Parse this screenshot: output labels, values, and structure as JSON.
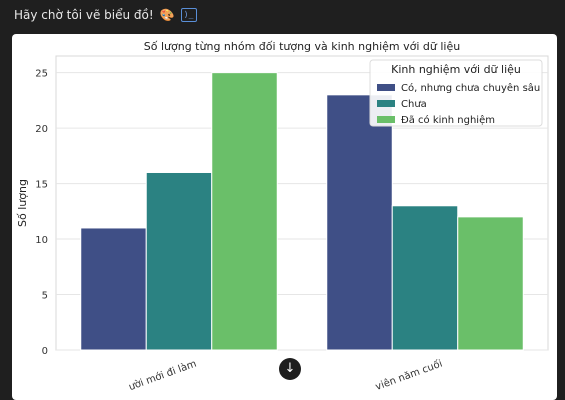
{
  "message": {
    "text": "Hãy chờ tôi vẽ biểu đồ!",
    "emoji_icon": "palette-icon",
    "code_icon": "code-toggle-icon"
  },
  "chart_data": {
    "type": "bar",
    "title": "Số lượng từng nhóm đối tượng và kinh nghiệm với dữ liệu",
    "xlabel": "",
    "ylabel": "Số lượng",
    "categories": [
      "Người mới đi làm",
      "Sinh viên năm cuối"
    ],
    "category_labels_visible": [
      "ười mới đi làm",
      "viên năm cuối"
    ],
    "series": [
      {
        "name": "Có, nhưng chưa chuyên sâu",
        "color": "#3f4f86",
        "values": [
          11,
          23
        ]
      },
      {
        "name": "Chưa",
        "color": "#2b8282",
        "values": [
          16,
          13
        ]
      },
      {
        "name": "Đã có kinh nghiệm",
        "color": "#6abf69",
        "values": [
          25,
          12
        ]
      }
    ],
    "ylim": [
      0,
      26.5
    ],
    "yticks": [
      0,
      5,
      10,
      15,
      20,
      25
    ],
    "grid": true,
    "legend": {
      "title": "Kinh nghiệm với dữ liệu",
      "placement": "top-right"
    }
  },
  "scroll_button": {
    "icon": "arrow-down-icon",
    "glyph": "🡓"
  }
}
